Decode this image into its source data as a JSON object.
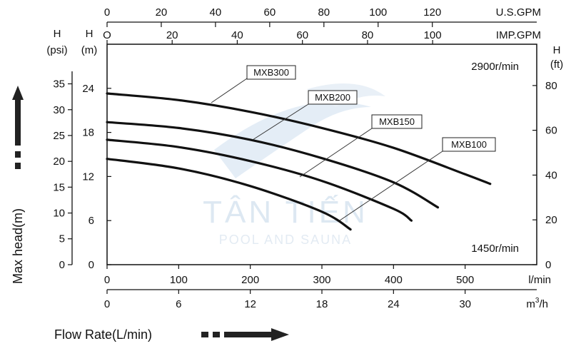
{
  "chart_data": {
    "type": "line",
    "x_label": "Flow Rate(L/min)",
    "y_label": "Max head(m)",
    "x_range": [
      0,
      600
    ],
    "y_range": [
      0,
      30
    ],
    "x_ticks": [
      0,
      100,
      200,
      300,
      400,
      500
    ],
    "x_unit": "l/min",
    "y_ticks": [
      0,
      6,
      12,
      18,
      24
    ],
    "y_unit": "(m)",
    "y_unit_prefix": "H",
    "top_axes": [
      {
        "unit": "U.S.GPM",
        "ticks": [
          "0",
          "20",
          "40",
          "60",
          "80",
          "100",
          "120"
        ],
        "l_per_min": [
          0,
          75.7,
          151.4,
          227.1,
          302.8,
          378.5,
          454.2
        ]
      },
      {
        "unit": "IMP.GPM",
        "ticks": [
          "O",
          "20",
          "40",
          "60",
          "80",
          "100"
        ],
        "l_per_min": [
          0,
          90.9,
          181.8,
          272.8,
          363.7,
          454.6
        ]
      }
    ],
    "bottom_secondary_axis": {
      "unit_base": "m",
      "unit_sup": "3",
      "unit_rest": "/h",
      "ticks": [
        "0",
        "6",
        "12",
        "18",
        "24",
        "30"
      ],
      "l_per_min": [
        0,
        100,
        200,
        300,
        400,
        500
      ]
    },
    "left_psi_axis": {
      "unit_top": "H",
      "unit_bottom": "(psi)",
      "ticks": [
        "0",
        "5",
        "10",
        "15",
        "20",
        "25",
        "30",
        "35"
      ],
      "values_m": [
        0,
        3.52,
        7.03,
        10.55,
        14.06,
        17.58,
        21.09,
        24.61
      ]
    },
    "right_ft_axis": {
      "unit_top": "H",
      "unit_bottom": "(ft)",
      "ticks": [
        "0",
        "20",
        "40",
        "60",
        "80"
      ],
      "values_m": [
        0,
        6.1,
        12.19,
        18.29,
        24.38
      ]
    },
    "series": [
      {
        "name": "MXB300",
        "x": [
          0,
          100,
          200,
          300,
          400,
          500,
          535
        ],
        "y": [
          23.3,
          22.4,
          20.8,
          18.6,
          15.9,
          12.3,
          11.0
        ]
      },
      {
        "name": "MXB200",
        "x": [
          0,
          100,
          200,
          300,
          400,
          462
        ],
        "y": [
          19.4,
          18.6,
          17.0,
          14.5,
          11.2,
          7.8
        ]
      },
      {
        "name": "MXB150",
        "x": [
          0,
          100,
          200,
          300,
          400,
          425
        ],
        "y": [
          17.0,
          16.0,
          14.1,
          11.4,
          7.6,
          6.0
        ]
      },
      {
        "name": "MXB100",
        "x": [
          0,
          100,
          200,
          300,
          340
        ],
        "y": [
          14.4,
          13.1,
          10.7,
          7.2,
          4.8
        ]
      }
    ],
    "speed_labels": [
      "2900r/min",
      "1450r/min"
    ],
    "grid": false
  },
  "watermark": {
    "brand": "TÂN TIẾN",
    "sub": "POOL AND SAUNA"
  }
}
